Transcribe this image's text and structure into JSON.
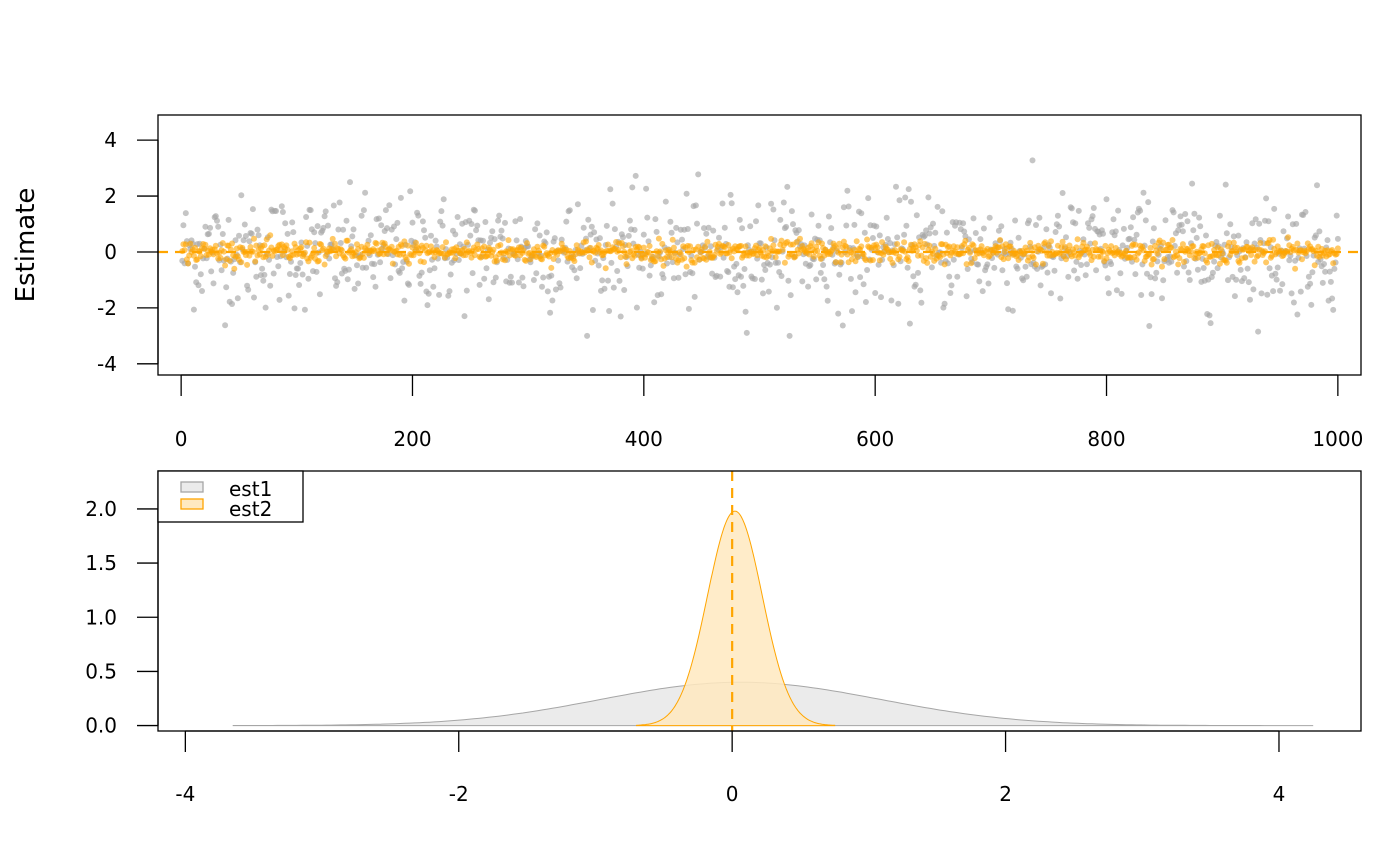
{
  "colors": {
    "est1": "#a6a6a6",
    "est2": "#ffa500",
    "est1_fill": "#ebebeb",
    "est2_fill": "#ffe9c0"
  },
  "chart_data": [
    {
      "type": "scatter",
      "ylabel": "Estimate",
      "xlabel": "",
      "xlim": [
        -20,
        1020
      ],
      "ylim": [
        -4.4,
        4.9
      ],
      "x_ticks": [
        0,
        200,
        400,
        600,
        800,
        1000
      ],
      "y_ticks": [
        -4,
        -2,
        0,
        2,
        4
      ],
      "reference_line_y": 0,
      "n_points": 1000,
      "series": [
        {
          "key": "est1",
          "sd": 1.0,
          "range": [
            -3.0,
            3.6
          ]
        },
        {
          "key": "est2",
          "sd": 0.2,
          "range": [
            -0.6,
            0.6
          ]
        }
      ],
      "grid": false
    },
    {
      "type": "area",
      "xlabel": "",
      "ylabel": "",
      "xlim": [
        -4.2,
        4.6
      ],
      "ylim": [
        -0.05,
        2.35
      ],
      "x_ticks": [
        -4,
        -2,
        0,
        2,
        4
      ],
      "y_ticks": [
        0.0,
        0.5,
        1.0,
        1.5,
        2.0
      ],
      "y_tick_labels": [
        "0.0",
        "0.5",
        "1.0",
        "1.5",
        "2.0"
      ],
      "reference_line_x": 0,
      "legend_position": "top-left",
      "series": [
        {
          "name": "est1",
          "x_range": [
            -3.65,
            4.25
          ],
          "peak": 0.4
        },
        {
          "name": "est2",
          "x_range": [
            -0.7,
            0.75
          ],
          "peak": 1.98
        }
      ],
      "grid": false
    }
  ]
}
